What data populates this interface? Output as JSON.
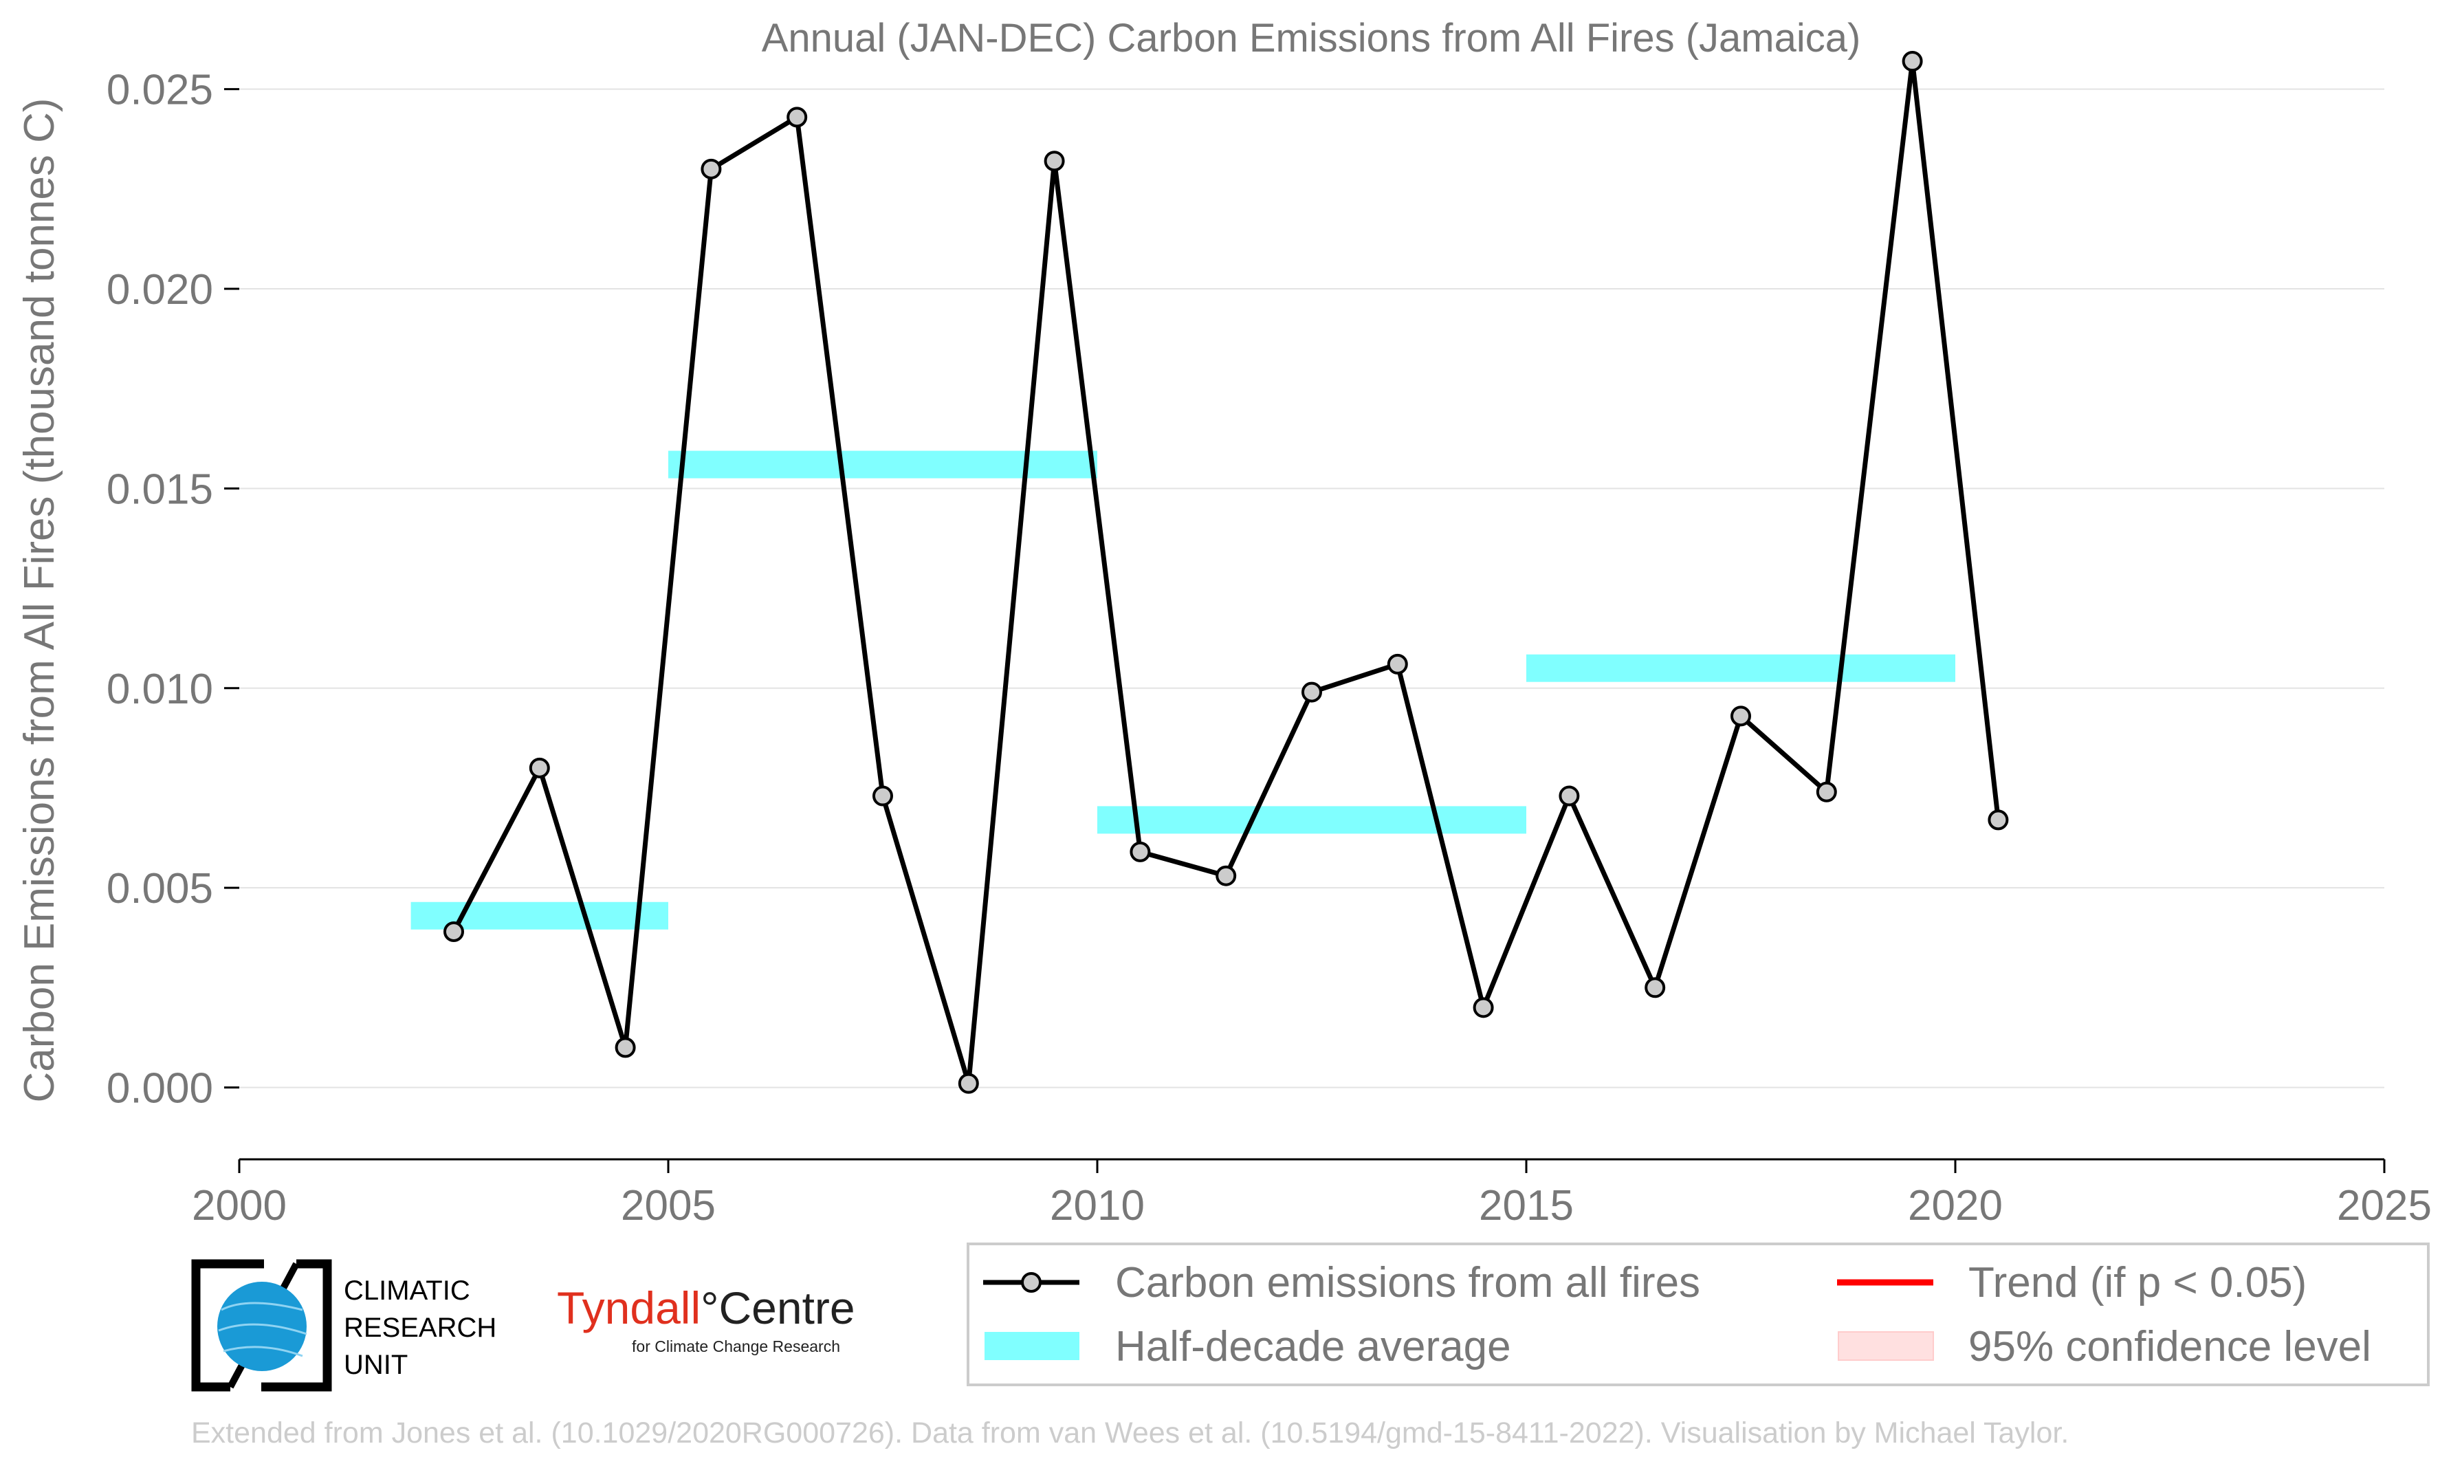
{
  "chart_data": {
    "type": "line",
    "title": "Annual (JAN-DEC) Carbon Emissions from All Fires (Jamaica)",
    "xlabel": "",
    "ylabel": "Carbon Emissions from All Fires (thousand tonnes C)",
    "xlim": [
      2000,
      2025
    ],
    "ylim": [
      -0.0018,
      0.0262
    ],
    "xticks": [
      2000,
      2005,
      2010,
      2015,
      2020,
      2025
    ],
    "xtick_labels": [
      "2000",
      "2005",
      "2010",
      "2015",
      "2020",
      "2025"
    ],
    "yticks": [
      0,
      0.005,
      0.01,
      0.015,
      0.02,
      0.025
    ],
    "ytick_labels": [
      "0.000",
      "0.005",
      "0.010",
      "0.015",
      "0.020",
      "0.025"
    ],
    "grid": "horizontal",
    "series": [
      {
        "name": "Carbon emissions from all fires",
        "color": "#000000",
        "marker_fill": "#cccccc",
        "x": [
          2002.5,
          2003.5,
          2004.5,
          2005.5,
          2006.5,
          2007.5,
          2008.5,
          2009.5,
          2010.5,
          2011.5,
          2012.5,
          2013.5,
          2014.5,
          2015.5,
          2016.5,
          2017.5,
          2018.5,
          2019.5,
          2020.5
        ],
        "y": [
          0.0039,
          0.008,
          0.001,
          0.023,
          0.0243,
          0.0073,
          0.0001,
          0.0232,
          0.0059,
          0.0053,
          0.0099,
          0.0106,
          0.002,
          0.0073,
          0.0025,
          0.0093,
          0.0074,
          0.0257,
          0.0067
        ]
      }
    ],
    "half_decade_average": {
      "name": "Half-decade average",
      "color": "#80ffff",
      "segments": [
        {
          "x0": 2002,
          "x1": 2005,
          "y": 0.0043
        },
        {
          "x0": 2005,
          "x1": 2010,
          "y": 0.0156
        },
        {
          "x0": 2010,
          "x1": 2015,
          "y": 0.0067
        },
        {
          "x0": 2015,
          "x1": 2020,
          "y": 0.0105
        }
      ]
    },
    "legend": {
      "placement": "bottom-right",
      "entries": [
        {
          "label": "Carbon emissions from all fires",
          "style": "line-marker",
          "color": "#000000"
        },
        {
          "label": "Trend (if p < 0.05)",
          "style": "line",
          "color": "#ff0000"
        },
        {
          "label": "Half-decade average",
          "style": "patch",
          "color": "#80ffff"
        },
        {
          "label": "95% confidence level",
          "style": "patch",
          "color": "#ffe0e0"
        }
      ]
    }
  },
  "logos": {
    "cru": [
      "CLIMATIC",
      "RESEARCH",
      "UNIT"
    ],
    "tyndall_main": "Tyndall",
    "tyndall_centre": "°Centre",
    "tyndall_sub": "for Climate Change Research"
  },
  "credit": "Extended from Jones et al. (10.1029/2020RG000726). Data from van Wees et al. (10.5194/gmd-15-8411-2022). Visualisation by Michael Taylor."
}
